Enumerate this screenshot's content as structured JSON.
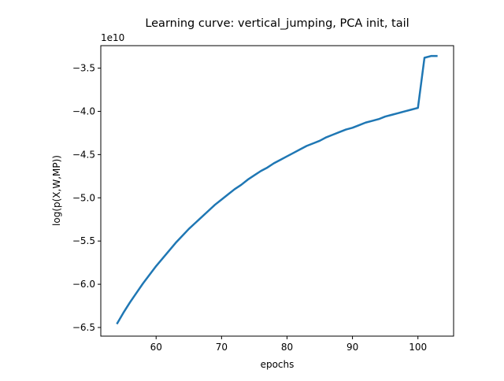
{
  "chart_data": {
    "type": "line",
    "title": "Learning curve: vertical_jumping, PCA init, tail",
    "xlabel": "epochs",
    "ylabel": "log(p(X,W,MP))",
    "y_offset_label": "1e10",
    "xlim": [
      51.55,
      105.45
    ],
    "ylim": [
      -6.6,
      -3.24
    ],
    "x_ticks": [
      60,
      70,
      80,
      90,
      100
    ],
    "y_ticks": [
      -6.5,
      -6.0,
      -5.5,
      -5.0,
      -4.5,
      -4.0,
      -3.5
    ],
    "x_tick_labels": [
      "60",
      "70",
      "80",
      "90",
      "100"
    ],
    "y_tick_labels": [
      "−6.5",
      "−6.0",
      "−5.5",
      "−5.0",
      "−4.5",
      "−4.0",
      "−3.5"
    ],
    "grid": false,
    "series": [
      {
        "color": "#1f77b4",
        "x": [
          54,
          55,
          56,
          57,
          58,
          59,
          60,
          61,
          62,
          63,
          64,
          65,
          66,
          67,
          68,
          69,
          70,
          71,
          72,
          73,
          74,
          75,
          76,
          77,
          78,
          79,
          80,
          81,
          82,
          83,
          84,
          85,
          86,
          87,
          88,
          89,
          90,
          91,
          92,
          93,
          94,
          95,
          96,
          97,
          98,
          99,
          100,
          101,
          102,
          103
        ],
        "values": [
          -6.46,
          -6.33,
          -6.21,
          -6.1,
          -5.99,
          -5.89,
          -5.79,
          -5.7,
          -5.61,
          -5.52,
          -5.44,
          -5.36,
          -5.29,
          -5.22,
          -5.15,
          -5.08,
          -5.02,
          -4.96,
          -4.9,
          -4.85,
          -4.79,
          -4.74,
          -4.69,
          -4.65,
          -4.6,
          -4.56,
          -4.52,
          -4.48,
          -4.44,
          -4.4,
          -4.37,
          -4.34,
          -4.3,
          -4.27,
          -4.24,
          -4.21,
          -4.19,
          -4.16,
          -4.13,
          -4.11,
          -4.09,
          -4.06,
          -4.04,
          -4.02,
          -4.0,
          -3.98,
          -3.96,
          -3.38,
          -3.36,
          -3.36
        ]
      }
    ]
  }
}
